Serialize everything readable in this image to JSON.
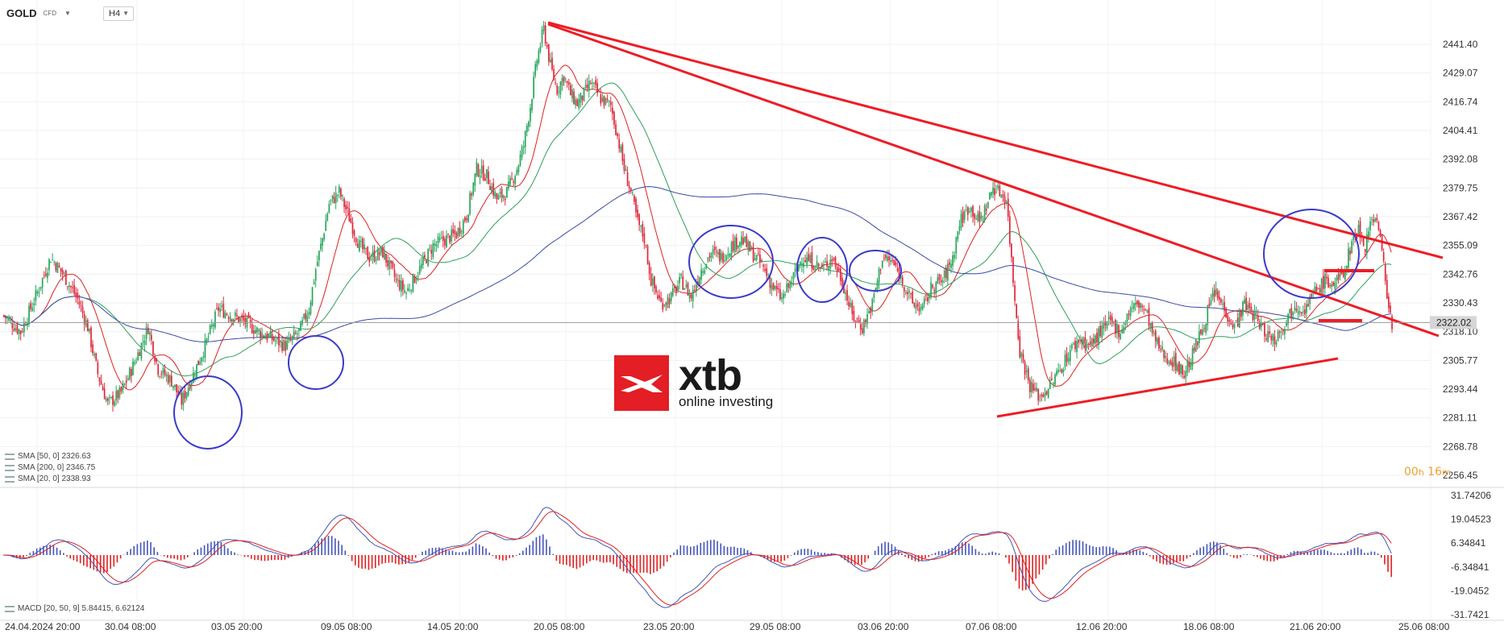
{
  "header": {
    "symbol": "GOLD",
    "symbol_sub": "CFD",
    "timeframe": "H4"
  },
  "legend": {
    "sma50": "SMA [50, 0] 2326.63",
    "sma200": "SMA [200, 0] 2346.75",
    "sma20": "SMA [20, 0] 2338.93",
    "macd": "MACD [20, 50, 9] 5.84415, 6.62124"
  },
  "timer": {
    "hours": "00",
    "h": "h",
    "minutes": "16",
    "m": "m"
  },
  "logo": {
    "name": "xtb",
    "tagline": "online investing"
  },
  "colors": {
    "bull": "#26a65b",
    "bear": "#e0263a",
    "sma20": "#e02020",
    "sma50": "#2ea05a",
    "sma200": "#3a4aa8",
    "macd_line": "#4455bb",
    "signal_line": "#e02020",
    "annotation_line": "#ee1c25",
    "annotation_circle": "#3a3acc",
    "timer": "#f0a030"
  },
  "chart_data": [
    {
      "type": "candlestick",
      "title": "GOLD CFD H4",
      "price_axis_ticks": [
        "2441.40",
        "2429.07",
        "2416.74",
        "2404.41",
        "2392.08",
        "2379.75",
        "2367.42",
        "2355.09",
        "2342.76",
        "2330.43",
        "2318.10",
        "2305.77",
        "2293.44",
        "2281.11",
        "2268.78",
        "2256.45"
      ],
      "current_price": "2322.02",
      "time_axis_ticks": [
        "24.04.2024 20:00",
        "30.04 08:00",
        "03.05 20:00",
        "09.05 08:00",
        "14.05 20:00",
        "20.05 08:00",
        "23.05 20:00",
        "29.05 08:00",
        "03.06 20:00",
        "07.06 08:00",
        "12.06 20:00",
        "18.06 08:00",
        "21.06 20:00",
        "25.06 08:00"
      ],
      "ylim": [
        2256.45,
        2449
      ],
      "close_path": [
        [
          0,
          2325
        ],
        [
          10,
          2318
        ],
        [
          20,
          2335
        ],
        [
          28,
          2350
        ],
        [
          36,
          2342
        ],
        [
          44,
          2332
        ],
        [
          50,
          2320
        ],
        [
          56,
          2300
        ],
        [
          62,
          2287
        ],
        [
          70,
          2292
        ],
        [
          78,
          2305
        ],
        [
          86,
          2320
        ],
        [
          92,
          2302
        ],
        [
          100,
          2297
        ],
        [
          106,
          2288
        ],
        [
          112,
          2298
        ],
        [
          120,
          2312
        ],
        [
          128,
          2328
        ],
        [
          136,
          2325
        ],
        [
          144,
          2322
        ],
        [
          152,
          2318
        ],
        [
          160,
          2315
        ],
        [
          168,
          2312
        ],
        [
          176,
          2318
        ],
        [
          182,
          2328
        ],
        [
          186,
          2345
        ],
        [
          190,
          2358
        ],
        [
          194,
          2373
        ],
        [
          200,
          2378
        ],
        [
          206,
          2367
        ],
        [
          212,
          2355
        ],
        [
          218,
          2350
        ],
        [
          226,
          2352
        ],
        [
          234,
          2340
        ],
        [
          240,
          2335
        ],
        [
          248,
          2345
        ],
        [
          256,
          2355
        ],
        [
          264,
          2358
        ],
        [
          270,
          2360
        ],
        [
          276,
          2368
        ],
        [
          282,
          2388
        ],
        [
          288,
          2385
        ],
        [
          294,
          2375
        ],
        [
          300,
          2378
        ],
        [
          306,
          2388
        ],
        [
          310,
          2398
        ],
        [
          314,
          2415
        ],
        [
          318,
          2435
        ],
        [
          322,
          2448
        ],
        [
          326,
          2432
        ],
        [
          330,
          2422
        ],
        [
          334,
          2428
        ],
        [
          338,
          2420
        ],
        [
          342,
          2416
        ],
        [
          346,
          2420
        ],
        [
          350,
          2425
        ],
        [
          356,
          2418
        ],
        [
          362,
          2415
        ],
        [
          366,
          2402
        ],
        [
          370,
          2388
        ],
        [
          374,
          2378
        ],
        [
          378,
          2365
        ],
        [
          382,
          2358
        ],
        [
          386,
          2340
        ],
        [
          392,
          2330
        ],
        [
          398,
          2333
        ],
        [
          404,
          2340
        ],
        [
          410,
          2333
        ],
        [
          416,
          2345
        ],
        [
          422,
          2352
        ],
        [
          428,
          2350
        ],
        [
          434,
          2355
        ],
        [
          440,
          2358
        ],
        [
          446,
          2352
        ],
        [
          452,
          2347
        ],
        [
          458,
          2338
        ],
        [
          464,
          2332
        ],
        [
          470,
          2340
        ],
        [
          476,
          2350
        ],
        [
          482,
          2348
        ],
        [
          488,
          2345
        ],
        [
          494,
          2350
        ],
        [
          500,
          2340
        ],
        [
          506,
          2325
        ],
        [
          512,
          2320
        ],
        [
          518,
          2330
        ],
        [
          524,
          2350
        ],
        [
          530,
          2348
        ],
        [
          536,
          2340
        ],
        [
          542,
          2330
        ],
        [
          548,
          2328
        ],
        [
          554,
          2338
        ],
        [
          560,
          2340
        ],
        [
          566,
          2350
        ],
        [
          570,
          2365
        ],
        [
          576,
          2372
        ],
        [
          582,
          2365
        ],
        [
          586,
          2372
        ],
        [
          590,
          2380
        ],
        [
          594,
          2378
        ],
        [
          598,
          2375
        ],
        [
          602,
          2340
        ],
        [
          606,
          2310
        ],
        [
          612,
          2295
        ],
        [
          618,
          2290
        ],
        [
          624,
          2295
        ],
        [
          630,
          2302
        ],
        [
          636,
          2310
        ],
        [
          642,
          2315
        ],
        [
          648,
          2312
        ],
        [
          654,
          2318
        ],
        [
          660,
          2322
        ],
        [
          666,
          2318
        ],
        [
          672,
          2328
        ],
        [
          678,
          2330
        ],
        [
          682,
          2325
        ],
        [
          686,
          2315
        ],
        [
          692,
          2308
        ],
        [
          698,
          2305
        ],
        [
          704,
          2300
        ],
        [
          710,
          2310
        ],
        [
          716,
          2322
        ],
        [
          722,
          2335
        ],
        [
          728,
          2328
        ],
        [
          734,
          2320
        ],
        [
          740,
          2330
        ],
        [
          746,
          2325
        ],
        [
          752,
          2318
        ],
        [
          758,
          2315
        ],
        [
          764,
          2322
        ],
        [
          770,
          2330
        ],
        [
          776,
          2328
        ],
        [
          782,
          2335
        ],
        [
          788,
          2340
        ],
        [
          794,
          2338
        ],
        [
          800,
          2345
        ],
        [
          804,
          2357
        ],
        [
          808,
          2362
        ],
        [
          812,
          2355
        ],
        [
          816,
          2368
        ],
        [
          820,
          2364
        ],
        [
          824,
          2340
        ],
        [
          828,
          2320
        ]
      ],
      "note": "close_path: [x offset along time axis, price]; candles drawn from this path"
    },
    {
      "type": "line",
      "title": "MACD [20, 50, 9]",
      "y_axis_ticks": [
        "31.74206",
        "19.04523",
        "6.34841",
        "-6.34841",
        "-19.0452",
        "-31.7421"
      ],
      "ylim": [
        -31.7421,
        31.74206
      ],
      "series_names": [
        "MACD",
        "Signal",
        "Histogram"
      ]
    }
  ]
}
